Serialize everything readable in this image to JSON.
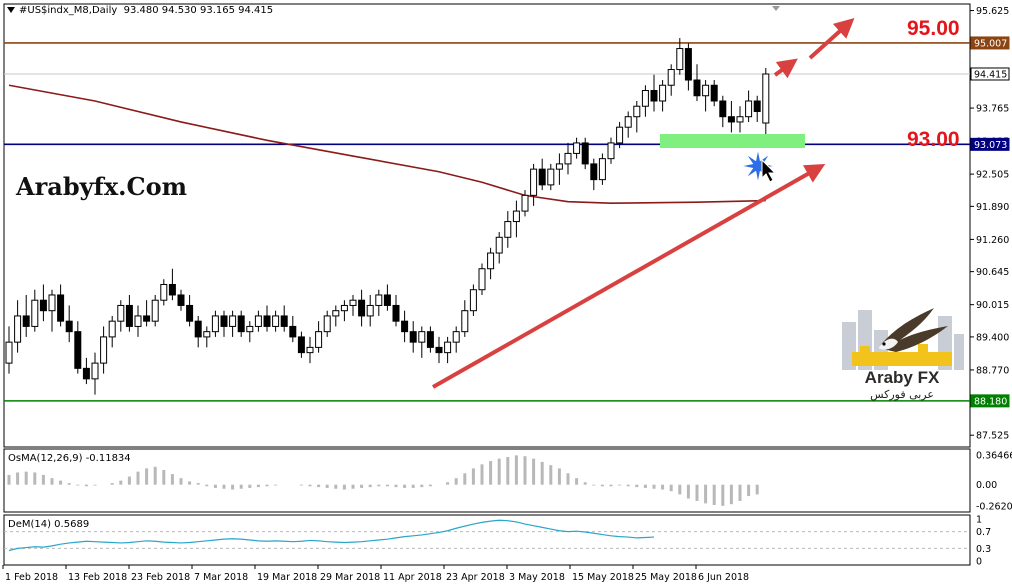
{
  "header": {
    "symbol": "#US$indx_M8,Daily",
    "ohlc": "93.480 94.530 93.165 94.415"
  },
  "watermark": "Arabyfx.Com",
  "logo": {
    "name": "Araby FX",
    "arabic": "عربى فوركس"
  },
  "annotations": {
    "target_high": "95.00",
    "target_low": "93.00"
  },
  "indicators": {
    "osma": {
      "label": "OsMA(12,26,9) -0.11834",
      "ticks": [
        "0.36466",
        "0.00",
        "-0.26204"
      ]
    },
    "dem": {
      "label": "DeM(14) 0.5689",
      "ticks": [
        "1",
        "0.7",
        "0.3",
        "0"
      ]
    }
  },
  "chart_data": {
    "type": "candlestick",
    "timeframe": "Daily",
    "y_axis_ticks": [
      "95.625",
      "94.995",
      "94.365",
      "93.765",
      "93.135",
      "92.505",
      "91.890",
      "91.260",
      "90.645",
      "90.015",
      "89.400",
      "88.770",
      "88.155",
      "87.525"
    ],
    "ylim": [
      87.3,
      95.75
    ],
    "price_labels": [
      {
        "value": "95.007",
        "color": "#8b4513"
      },
      {
        "value": "94.415",
        "color": "#ffffff"
      },
      {
        "value": "93.073",
        "color": "#000080"
      },
      {
        "value": "88.180",
        "color": "#008000"
      }
    ],
    "horizontal_lines": [
      {
        "value": 95.007,
        "color": "#8b4513"
      },
      {
        "value": 94.415,
        "color": "#c8c8c8"
      },
      {
        "value": 93.073,
        "color": "#000080"
      },
      {
        "value": 88.18,
        "color": "#008000"
      }
    ],
    "x_labels": [
      "1 Feb 2018",
      "13 Feb 2018",
      "23 Feb 2018",
      "7 Mar 2018",
      "19 Mar 2018",
      "29 Mar 2018",
      "11 Apr 2018",
      "23 Apr 2018",
      "3 May 2018",
      "15 May 2018",
      "25 May 2018",
      "6 Jun 2018"
    ],
    "candles_ohlc": [
      [
        88.9,
        89.6,
        88.7,
        89.3
      ],
      [
        89.3,
        90.1,
        89.1,
        89.8
      ],
      [
        89.8,
        90.2,
        89.4,
        89.6
      ],
      [
        89.6,
        90.3,
        89.5,
        90.1
      ],
      [
        90.1,
        90.4,
        89.7,
        89.9
      ],
      [
        89.9,
        90.3,
        89.5,
        90.2
      ],
      [
        90.2,
        90.4,
        89.6,
        89.7
      ],
      [
        89.7,
        90.0,
        89.3,
        89.5
      ],
      [
        89.5,
        89.7,
        88.7,
        88.8
      ],
      [
        88.8,
        89.0,
        88.5,
        88.6
      ],
      [
        88.6,
        89.1,
        88.3,
        88.9
      ],
      [
        88.9,
        89.6,
        88.7,
        89.4
      ],
      [
        89.4,
        89.8,
        89.2,
        89.7
      ],
      [
        89.7,
        90.1,
        89.5,
        90.0
      ],
      [
        90.0,
        90.2,
        89.5,
        89.6
      ],
      [
        89.6,
        90.0,
        89.4,
        89.8
      ],
      [
        89.8,
        90.1,
        89.6,
        89.7
      ],
      [
        89.7,
        90.2,
        89.6,
        90.1
      ],
      [
        90.1,
        90.5,
        90.0,
        90.4
      ],
      [
        90.4,
        90.7,
        90.1,
        90.2
      ],
      [
        90.2,
        90.3,
        89.9,
        90.0
      ],
      [
        90.0,
        90.2,
        89.6,
        89.7
      ],
      [
        89.7,
        89.8,
        89.2,
        89.4
      ],
      [
        89.4,
        89.6,
        89.2,
        89.5
      ],
      [
        89.5,
        89.9,
        89.4,
        89.8
      ],
      [
        89.8,
        89.9,
        89.4,
        89.6
      ],
      [
        89.6,
        89.9,
        89.4,
        89.8
      ],
      [
        89.8,
        89.9,
        89.4,
        89.5
      ],
      [
        89.5,
        89.7,
        89.3,
        89.6
      ],
      [
        89.6,
        89.9,
        89.5,
        89.8
      ],
      [
        89.8,
        90.0,
        89.5,
        89.6
      ],
      [
        89.6,
        89.9,
        89.5,
        89.8
      ],
      [
        89.8,
        90.0,
        89.5,
        89.6
      ],
      [
        89.6,
        89.8,
        89.3,
        89.4
      ],
      [
        89.4,
        89.5,
        89.0,
        89.1
      ],
      [
        89.1,
        89.4,
        88.9,
        89.2
      ],
      [
        89.2,
        89.7,
        89.1,
        89.5
      ],
      [
        89.5,
        89.9,
        89.4,
        89.8
      ],
      [
        89.8,
        90.0,
        89.6,
        89.9
      ],
      [
        89.9,
        90.1,
        89.7,
        90.0
      ],
      [
        90.0,
        90.2,
        89.8,
        90.1
      ],
      [
        90.1,
        90.3,
        89.6,
        89.8
      ],
      [
        89.8,
        90.2,
        89.6,
        90.0
      ],
      [
        90.0,
        90.3,
        89.8,
        90.2
      ],
      [
        90.2,
        90.4,
        89.9,
        90.0
      ],
      [
        90.0,
        90.2,
        89.6,
        89.7
      ],
      [
        89.7,
        89.9,
        89.3,
        89.5
      ],
      [
        89.5,
        89.7,
        89.1,
        89.3
      ],
      [
        89.3,
        89.6,
        89.0,
        89.5
      ],
      [
        89.5,
        89.6,
        89.1,
        89.2
      ],
      [
        89.2,
        89.4,
        88.9,
        89.1
      ],
      [
        89.1,
        89.4,
        88.9,
        89.3
      ],
      [
        89.3,
        89.6,
        89.1,
        89.5
      ],
      [
        89.5,
        90.1,
        89.4,
        89.9
      ],
      [
        89.9,
        90.4,
        89.8,
        90.3
      ],
      [
        90.3,
        90.8,
        90.2,
        90.7
      ],
      [
        90.7,
        91.1,
        90.5,
        91.0
      ],
      [
        91.0,
        91.4,
        90.8,
        91.3
      ],
      [
        91.3,
        91.8,
        91.1,
        91.6
      ],
      [
        91.6,
        92.0,
        91.3,
        91.8
      ],
      [
        91.8,
        92.2,
        91.7,
        92.1
      ],
      [
        92.1,
        92.7,
        91.9,
        92.6
      ],
      [
        92.6,
        92.8,
        92.2,
        92.3
      ],
      [
        92.3,
        92.7,
        92.2,
        92.6
      ],
      [
        92.6,
        92.9,
        92.3,
        92.7
      ],
      [
        92.7,
        93.1,
        92.5,
        92.9
      ],
      [
        92.9,
        93.2,
        92.8,
        93.1
      ],
      [
        93.1,
        93.2,
        92.6,
        92.7
      ],
      [
        92.7,
        92.8,
        92.2,
        92.4
      ],
      [
        92.4,
        92.9,
        92.3,
        92.8
      ],
      [
        92.8,
        93.2,
        92.7,
        93.1
      ],
      [
        93.1,
        93.5,
        93.0,
        93.4
      ],
      [
        93.4,
        93.7,
        93.2,
        93.6
      ],
      [
        93.6,
        93.9,
        93.3,
        93.8
      ],
      [
        93.8,
        94.2,
        93.6,
        94.1
      ],
      [
        94.1,
        94.4,
        93.7,
        93.9
      ],
      [
        93.9,
        94.3,
        93.7,
        94.2
      ],
      [
        94.2,
        94.6,
        94.0,
        94.5
      ],
      [
        94.5,
        95.1,
        94.4,
        94.9
      ],
      [
        94.9,
        95.0,
        94.1,
        94.3
      ],
      [
        94.3,
        94.6,
        93.9,
        94.0
      ],
      [
        94.0,
        94.3,
        93.7,
        94.2
      ],
      [
        94.2,
        94.3,
        93.8,
        93.9
      ],
      [
        93.9,
        94.0,
        93.4,
        93.6
      ],
      [
        93.6,
        93.9,
        93.3,
        93.5
      ],
      [
        93.5,
        93.8,
        93.3,
        93.6
      ],
      [
        93.6,
        94.1,
        93.5,
        93.9
      ],
      [
        93.9,
        94.0,
        93.5,
        93.7
      ],
      [
        93.48,
        94.53,
        93.165,
        94.415
      ]
    ],
    "moving_average": {
      "color": "#8b1a1a",
      "points": [
        [
          0,
          94.2
        ],
        [
          10,
          93.9
        ],
        [
          20,
          93.5
        ],
        [
          30,
          93.15
        ],
        [
          40,
          92.85
        ],
        [
          50,
          92.55
        ],
        [
          55,
          92.35
        ],
        [
          60,
          92.1
        ],
        [
          65,
          91.98
        ],
        [
          70,
          91.95
        ],
        [
          80,
          91.97
        ],
        [
          88,
          92.0
        ]
      ]
    },
    "osma": [
      0.12,
      0.15,
      0.16,
      0.15,
      0.12,
      0.08,
      0.05,
      0.02,
      -0.01,
      -0.02,
      -0.01,
      0.0,
      0.02,
      0.05,
      0.1,
      0.16,
      0.2,
      0.22,
      0.18,
      0.13,
      0.08,
      0.04,
      0.02,
      -0.02,
      -0.04,
      -0.05,
      -0.06,
      -0.05,
      -0.04,
      -0.03,
      -0.02,
      -0.01,
      0.0,
      0.0,
      -0.01,
      -0.02,
      -0.03,
      -0.04,
      -0.05,
      -0.06,
      -0.05,
      -0.04,
      -0.03,
      -0.02,
      -0.02,
      -0.03,
      -0.04,
      -0.04,
      -0.03,
      -0.02,
      0.0,
      0.03,
      0.08,
      0.14,
      0.2,
      0.25,
      0.29,
      0.32,
      0.34,
      0.36,
      0.35,
      0.32,
      0.28,
      0.24,
      0.2,
      0.14,
      0.08,
      0.03,
      -0.01,
      -0.02,
      -0.02,
      -0.01,
      -0.02,
      -0.03,
      -0.04,
      -0.05,
      -0.06,
      -0.08,
      -0.12,
      -0.17,
      -0.2,
      -0.23,
      -0.25,
      -0.26,
      -0.24,
      -0.2,
      -0.14,
      -0.12
    ],
    "dem": [
      0.25,
      0.3,
      0.32,
      0.34,
      0.33,
      0.36,
      0.4,
      0.43,
      0.45,
      0.47,
      0.46,
      0.45,
      0.44,
      0.43,
      0.44,
      0.46,
      0.48,
      0.47,
      0.45,
      0.44,
      0.43,
      0.44,
      0.46,
      0.48,
      0.5,
      0.52,
      0.53,
      0.52,
      0.5,
      0.48,
      0.47,
      0.48,
      0.47,
      0.46,
      0.47,
      0.49,
      0.48,
      0.46,
      0.45,
      0.44,
      0.45,
      0.46,
      0.48,
      0.5,
      0.52,
      0.55,
      0.58,
      0.6,
      0.62,
      0.65,
      0.68,
      0.72,
      0.78,
      0.83,
      0.88,
      0.92,
      0.95,
      0.97,
      0.96,
      0.93,
      0.88,
      0.84,
      0.8,
      0.76,
      0.72,
      0.7,
      0.71,
      0.69,
      0.66,
      0.63,
      0.6,
      0.58,
      0.57,
      0.55,
      0.56,
      0.57
    ]
  }
}
